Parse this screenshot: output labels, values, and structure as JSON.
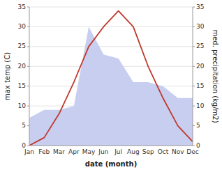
{
  "chart_data": {
    "type": "line",
    "xlabel": "date (month)",
    "ylabel": "max temp (C)",
    "y2label": "med. precipitation (kg/m2)",
    "categories": [
      "Jan",
      "Feb",
      "Mar",
      "Apr",
      "May",
      "Jun",
      "Jul",
      "Aug",
      "Sep",
      "Oct",
      "Nov",
      "Dec"
    ],
    "series": [
      {
        "type": "line",
        "color": "#c0392b",
        "values": [
          0,
          2,
          8,
          16,
          25,
          30,
          34,
          30,
          20,
          12,
          5,
          1
        ]
      },
      {
        "type": "area",
        "color": "#c8cef0",
        "axis": "y2",
        "values": [
          7,
          9,
          9,
          10,
          30,
          23,
          22,
          16,
          16,
          15,
          12,
          12
        ]
      }
    ],
    "ylim": [
      0,
      35
    ],
    "yticks": [
      0,
      5,
      10,
      15,
      20,
      25,
      30,
      35
    ],
    "y2lim": [
      0,
      35
    ],
    "y2ticks": [
      0,
      5,
      10,
      15,
      20,
      25,
      30,
      35
    ],
    "grid": true
  }
}
